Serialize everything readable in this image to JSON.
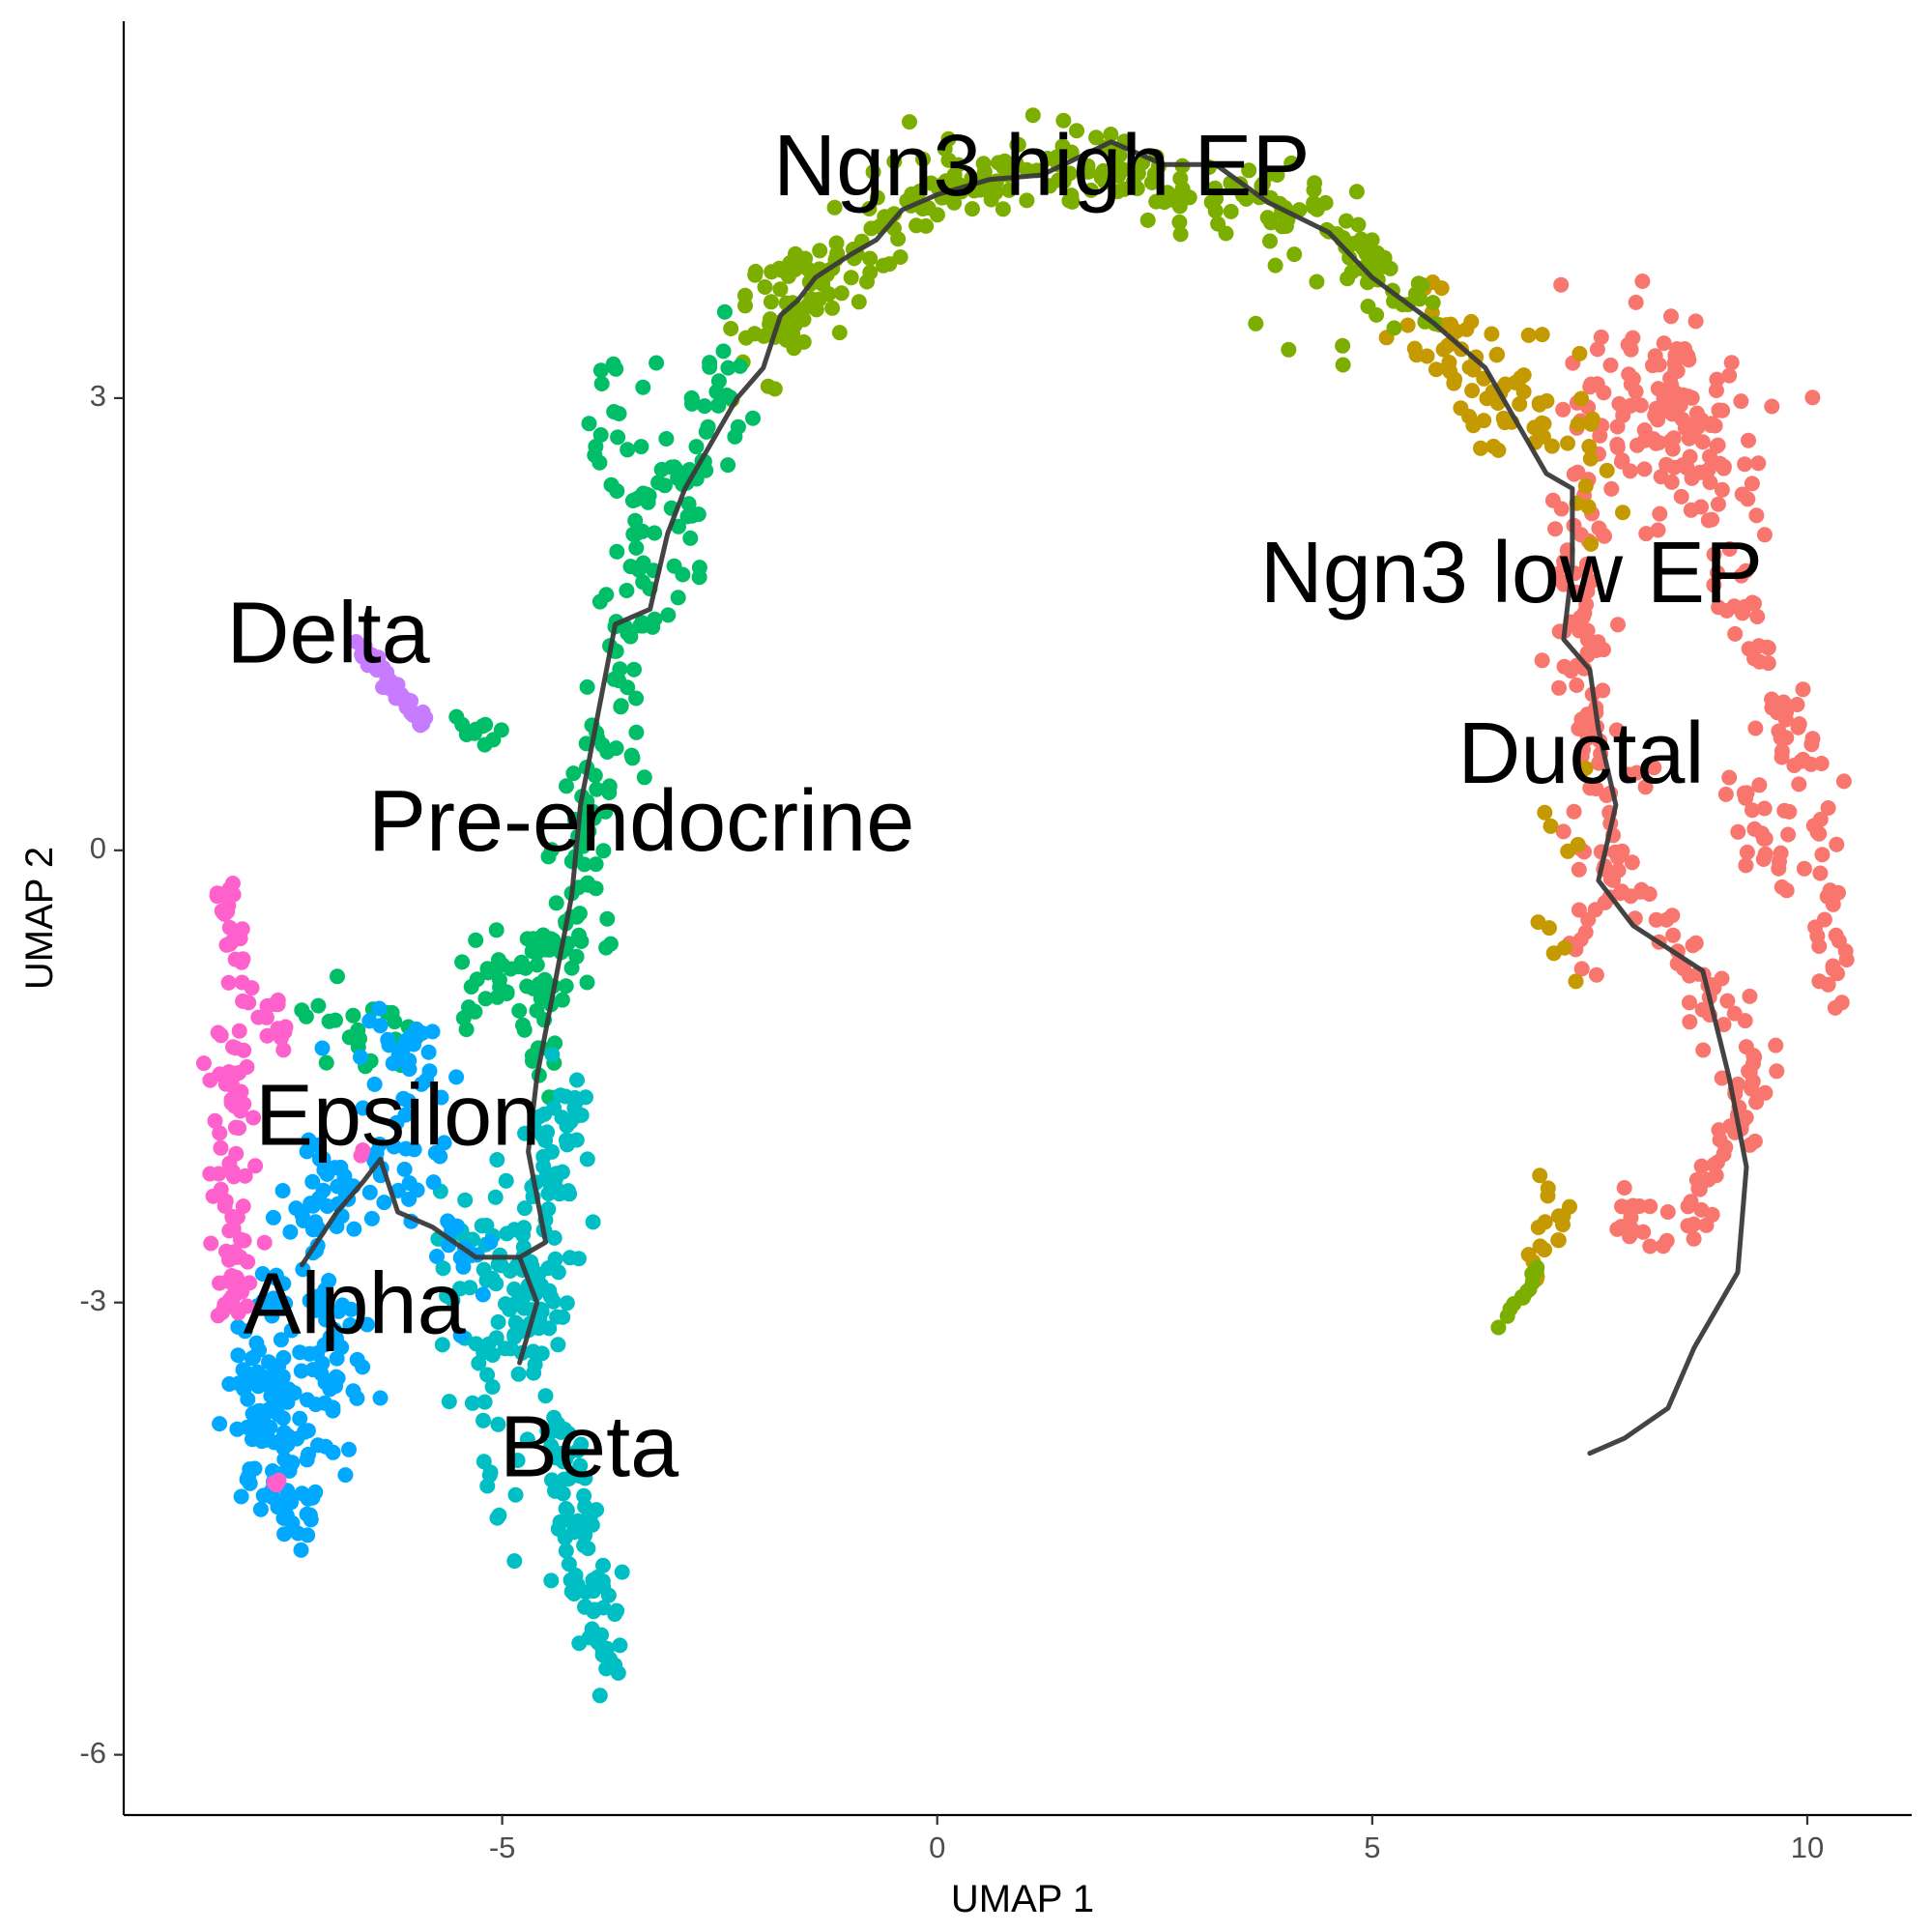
{
  "chart_data": {
    "type": "scatter",
    "title": "",
    "xlabel": "UMAP 1",
    "ylabel": "UMAP 2",
    "xlim": [
      -9.35,
      11.2
    ],
    "ylim": [
      -6.4,
      5.5
    ],
    "xticks": [
      -5,
      0,
      5,
      10
    ],
    "yticks": [
      -6,
      -3,
      0,
      3
    ],
    "xtick_labels": [
      "-5",
      "0",
      "5",
      "10"
    ],
    "ytick_labels": [
      "-6",
      "-3",
      "0",
      "3"
    ],
    "grid": false,
    "legend": "none",
    "cluster_labels": [
      {
        "text": "Ngn3 high EP",
        "x": 1.2,
        "y": 4.5
      },
      {
        "text": "Ngn3 low EP",
        "x": 6.6,
        "y": 1.8
      },
      {
        "text": "Ductal",
        "x": 7.4,
        "y": 0.6
      },
      {
        "text": "Delta",
        "x": -7.0,
        "y": 1.4
      },
      {
        "text": "Pre-endocrine",
        "x": -3.4,
        "y": 0.15
      },
      {
        "text": "Epsilon",
        "x": -6.2,
        "y": -1.8
      },
      {
        "text": "Alpha",
        "x": -6.7,
        "y": -3.05
      },
      {
        "text": "Beta",
        "x": -4.0,
        "y": -4.0
      }
    ],
    "series": [
      {
        "name": "Ductal",
        "color": "#F8766D",
        "segments": [
          {
            "a": [
              7.7,
              3.0
            ],
            "b": [
              9.2,
              2.6
            ],
            "n": 140,
            "s": 0.35
          },
          {
            "a": [
              7.3,
              2.6
            ],
            "b": [
              7.6,
              -0.9
            ],
            "n": 70,
            "s": 0.18
          },
          {
            "a": [
              7.6,
              0.0
            ],
            "b": [
              9.6,
              -1.5
            ],
            "n": 50,
            "s": 0.15
          },
          {
            "a": [
              9.4,
              -1.5
            ],
            "b": [
              8.6,
              -2.5
            ],
            "n": 40,
            "s": 0.1
          },
          {
            "a": [
              8.5,
              -2.5
            ],
            "b": [
              7.6,
              -2.4
            ],
            "n": 18,
            "s": 0.08
          },
          {
            "a": [
              9.0,
              1.8
            ],
            "b": [
              10.2,
              0.2
            ],
            "n": 50,
            "s": 0.15
          },
          {
            "a": [
              10.2,
              0.2
            ],
            "b": [
              10.3,
              -1.0
            ],
            "n": 25,
            "s": 0.1
          },
          {
            "a": [
              7.4,
              1.6
            ],
            "b": [
              7.8,
              0.2
            ],
            "n": 30,
            "s": 0.2
          },
          {
            "a": [
              9.2,
              0.5
            ],
            "b": [
              9.8,
              -0.3
            ],
            "n": 25,
            "s": 0.15
          }
        ]
      },
      {
        "name": "Ngn3 low EP",
        "color": "#C49A00",
        "segments": [
          {
            "a": [
              5.5,
              3.5
            ],
            "b": [
              6.7,
              3.0
            ],
            "n": 40,
            "s": 0.2
          },
          {
            "a": [
              6.5,
              3.1
            ],
            "b": [
              7.4,
              2.6
            ],
            "n": 40,
            "s": 0.25
          },
          {
            "a": [
              7.1,
              -2.3
            ],
            "b": [
              7.3,
              -2.6
            ],
            "n": 10,
            "s": 0.1
          },
          {
            "a": [
              7.0,
              -2.5
            ],
            "b": [
              6.8,
              -2.9
            ],
            "n": 10,
            "s": 0.05
          },
          {
            "a": [
              7.3,
              0.8
            ],
            "b": [
              7.0,
              -0.9
            ],
            "n": 10,
            "s": 0.25
          }
        ]
      },
      {
        "name": "Ngn3 high EP",
        "color": "#7CAE00",
        "segments": [
          {
            "a": [
              -2.2,
              3.3
            ],
            "b": [
              -0.6,
              4.2
            ],
            "n": 80,
            "s": 0.18
          },
          {
            "a": [
              -0.6,
              4.3
            ],
            "b": [
              2.0,
              4.6
            ],
            "n": 90,
            "s": 0.14
          },
          {
            "a": [
              2.0,
              4.5
            ],
            "b": [
              4.5,
              4.2
            ],
            "n": 70,
            "s": 0.13
          },
          {
            "a": [
              4.5,
              4.1
            ],
            "b": [
              5.7,
              3.6
            ],
            "n": 40,
            "s": 0.13
          },
          {
            "a": [
              3.8,
              3.9
            ],
            "b": [
              5.0,
              3.3
            ],
            "n": 12,
            "s": 0.25
          },
          {
            "a": [
              6.9,
              -2.8
            ],
            "b": [
              6.45,
              -3.2
            ],
            "n": 12,
            "s": 0.03
          }
        ]
      },
      {
        "name": "Pre-endocrine",
        "color": "#00BE67",
        "segments": [
          {
            "a": [
              -2.3,
              3.2
            ],
            "b": [
              -3.5,
              1.6
            ],
            "n": 70,
            "s": 0.22
          },
          {
            "a": [
              -3.5,
              1.6
            ],
            "b": [
              -4.3,
              -0.7
            ],
            "n": 80,
            "s": 0.2
          },
          {
            "a": [
              -4.3,
              -0.7
            ],
            "b": [
              -5.4,
              -1.0
            ],
            "n": 35,
            "s": 0.25
          },
          {
            "a": [
              -5.6,
              0.85
            ],
            "b": [
              -5.0,
              0.75
            ],
            "n": 10,
            "s": 0.05
          },
          {
            "a": [
              -3.8,
              3.1
            ],
            "b": [
              -3.4,
              2.3
            ],
            "n": 25,
            "s": 0.2
          },
          {
            "a": [
              -7.5,
              -1.2
            ],
            "b": [
              -6.0,
              -1.3
            ],
            "n": 25,
            "s": 0.12
          },
          {
            "a": [
              -4.6,
              -0.7
            ],
            "b": [
              -4.4,
              -1.7
            ],
            "n": 25,
            "s": 0.12
          }
        ]
      },
      {
        "name": "Beta",
        "color": "#00BFC4",
        "segments": [
          {
            "a": [
              -4.3,
              -1.6
            ],
            "b": [
              -4.7,
              -3.3
            ],
            "n": 80,
            "s": 0.2
          },
          {
            "a": [
              -5.6,
              -2.5
            ],
            "b": [
              -4.4,
              -3.2
            ],
            "n": 60,
            "s": 0.22
          },
          {
            "a": [
              -4.4,
              -3.8
            ],
            "b": [
              -3.8,
              -5.4
            ],
            "n": 90,
            "s": 0.15
          },
          {
            "a": [
              -5.4,
              -3.3
            ],
            "b": [
              -4.8,
              -4.2
            ],
            "n": 25,
            "s": 0.2
          }
        ]
      },
      {
        "name": "Alpha",
        "color": "#00A9FF",
        "segments": [
          {
            "a": [
              -7.8,
              -3.4
            ],
            "b": [
              -7.4,
              -4.3
            ],
            "n": 120,
            "s": 0.22
          },
          {
            "a": [
              -7.4,
              -2.3
            ],
            "b": [
              -6.0,
              -2.0
            ],
            "n": 60,
            "s": 0.25
          },
          {
            "a": [
              -7.5,
              -2.8
            ],
            "b": [
              -6.7,
              -3.7
            ],
            "n": 60,
            "s": 0.25
          },
          {
            "a": [
              -6.5,
              -1.3
            ],
            "b": [
              -5.8,
              -1.5
            ],
            "n": 30,
            "s": 0.2
          },
          {
            "a": [
              -5.8,
              -2.6
            ],
            "b": [
              -5.2,
              -2.8
            ],
            "n": 15,
            "s": 0.15
          }
        ]
      },
      {
        "name": "Delta",
        "color": "#C77CFF",
        "segments": [
          {
            "a": [
              -6.65,
              1.35
            ],
            "b": [
              -5.9,
              0.85
            ],
            "n": 45,
            "s": 0.03
          }
        ]
      },
      {
        "name": "Epsilon",
        "color": "#FF61CC",
        "segments": [
          {
            "a": [
              -8.2,
              -0.2
            ],
            "b": [
              -8.0,
              -1.0
            ],
            "n": 25,
            "s": 0.06
          },
          {
            "a": [
              -8.1,
              -1.2
            ],
            "b": [
              -8.1,
              -3.1
            ],
            "n": 80,
            "s": 0.13
          },
          {
            "a": [
              -7.8,
              -1.0
            ],
            "b": [
              -7.4,
              -1.3
            ],
            "n": 12,
            "s": 0.07
          },
          {
            "a": [
              -6.6,
              -2.0
            ],
            "b": [
              -6.6,
              -2.0
            ],
            "n": 2,
            "s": 0.02
          },
          {
            "a": [
              -7.6,
              -4.2
            ],
            "b": [
              -7.6,
              -4.2
            ],
            "n": 3,
            "s": 0.03
          }
        ]
      }
    ],
    "trajectory": [
      [
        -7.3,
        -2.75
      ],
      [
        -6.9,
        -2.4
      ],
      [
        -6.6,
        -2.2
      ],
      [
        -6.4,
        -2.05
      ],
      [
        -6.2,
        -2.4
      ],
      [
        -5.8,
        -2.5
      ],
      [
        -5.3,
        -2.7
      ],
      [
        -4.8,
        -2.7
      ],
      [
        -4.5,
        -2.6
      ],
      [
        -4.6,
        -2.3
      ],
      [
        -4.7,
        -2.0
      ],
      [
        -4.6,
        -1.5
      ],
      [
        -4.4,
        -0.9
      ],
      [
        -4.2,
        -0.3
      ],
      [
        -4.1,
        0.3
      ],
      [
        -3.9,
        0.9
      ],
      [
        -3.7,
        1.5
      ],
      [
        -3.3,
        1.6
      ],
      [
        -3.1,
        2.1
      ],
      [
        -2.9,
        2.4
      ],
      [
        -2.6,
        2.7
      ],
      [
        -2.3,
        3.0
      ],
      [
        -2.0,
        3.2
      ],
      [
        -1.8,
        3.55
      ],
      [
        -1.6,
        3.65
      ],
      [
        -1.4,
        3.8
      ],
      [
        -1.0,
        3.95
      ],
      [
        -0.7,
        4.05
      ],
      [
        -0.4,
        4.25
      ],
      [
        0.0,
        4.35
      ],
      [
        0.6,
        4.45
      ],
      [
        1.2,
        4.48
      ],
      [
        2.0,
        4.7
      ],
      [
        2.6,
        4.55
      ],
      [
        3.2,
        4.55
      ],
      [
        3.8,
        4.3
      ],
      [
        4.5,
        4.1
      ],
      [
        5.0,
        3.8
      ],
      [
        5.7,
        3.5
      ],
      [
        6.3,
        3.2
      ],
      [
        6.7,
        2.8
      ],
      [
        7.0,
        2.5
      ],
      [
        7.3,
        2.4
      ],
      [
        7.3,
        1.9
      ],
      [
        7.2,
        1.4
      ],
      [
        7.5,
        1.2
      ],
      [
        7.6,
        0.8
      ],
      [
        7.8,
        0.3
      ],
      [
        7.6,
        -0.2
      ],
      [
        8.0,
        -0.5
      ],
      [
        8.8,
        -0.8
      ],
      [
        9.1,
        -1.5
      ],
      [
        9.3,
        -2.1
      ],
      [
        9.2,
        -2.8
      ],
      [
        8.7,
        -3.3
      ],
      [
        8.4,
        -3.7
      ],
      [
        7.9,
        -3.9
      ],
      [
        7.5,
        -4.0
      ]
    ],
    "trajectory_branch": [
      [
        -4.8,
        -2.7
      ],
      [
        -4.6,
        -3.0
      ],
      [
        -4.8,
        -3.4
      ]
    ]
  }
}
